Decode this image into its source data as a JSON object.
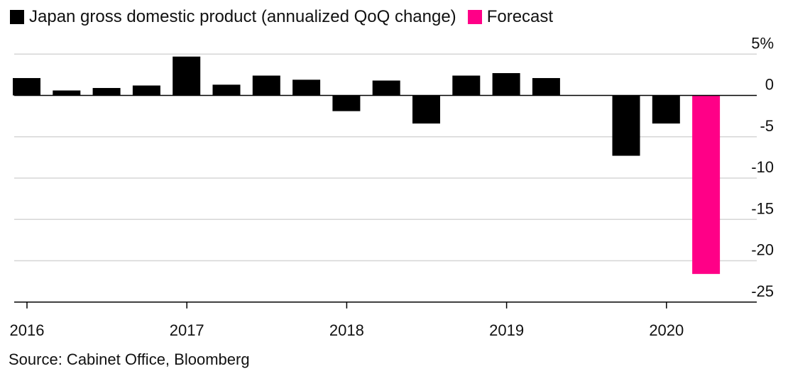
{
  "chart_data": {
    "type": "bar",
    "title": "",
    "xlabel": "",
    "ylabel": "",
    "ylim": [
      -25,
      5
    ],
    "y_ticks": [
      5,
      0,
      -5,
      -10,
      -15,
      -20,
      -25
    ],
    "y_tick_labels": [
      "5%",
      "0",
      "-5",
      "-10",
      "-15",
      "-20",
      "-25"
    ],
    "x_ticks": [
      "2016",
      "2017",
      "2018",
      "2019",
      "2020"
    ],
    "grid": true,
    "legend_position": "top-left",
    "categories": [
      "Q1 2016",
      "Q2 2016",
      "Q3 2016",
      "Q4 2016",
      "Q1 2017",
      "Q2 2017",
      "Q3 2017",
      "Q4 2017",
      "Q1 2018",
      "Q2 2018",
      "Q3 2018",
      "Q4 2018",
      "Q1 2019",
      "Q2 2019",
      "Q3 2019",
      "Q4 2019",
      "Q1 2020",
      "Q2 2020"
    ],
    "series": [
      {
        "name": "Japan gross domestic product (annualized QoQ change)",
        "color": "#000000",
        "values": [
          2.1,
          0.6,
          0.9,
          1.2,
          4.7,
          1.3,
          2.4,
          1.9,
          -1.9,
          1.8,
          -3.4,
          2.4,
          2.7,
          2.1,
          0.0,
          -7.3,
          -3.4,
          null
        ]
      },
      {
        "name": "Forecast",
        "color": "#ff0087",
        "values": [
          null,
          null,
          null,
          null,
          null,
          null,
          null,
          null,
          null,
          null,
          null,
          null,
          null,
          null,
          null,
          null,
          null,
          -21.6
        ]
      }
    ]
  },
  "source": "Source: Cabinet Office, Bloomberg"
}
